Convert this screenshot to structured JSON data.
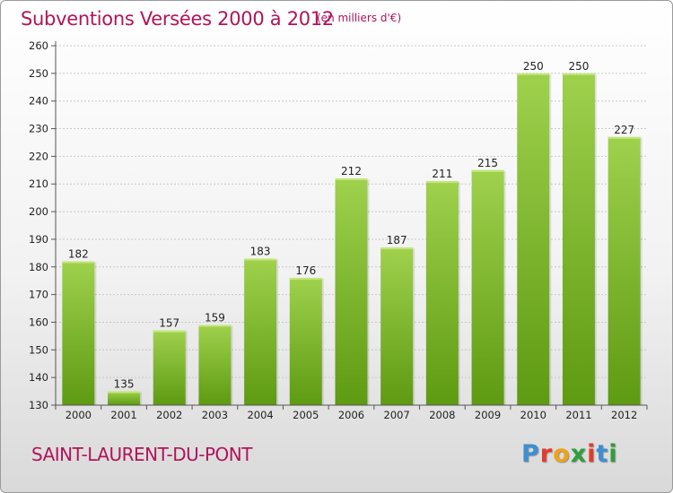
{
  "header": {
    "title": "Subventions Versées 2000 à 2012",
    "unit": "(en milliers d'€)"
  },
  "footer": {
    "commune": "SAINT-LAURENT-DU-PONT",
    "logo_letters": [
      "P",
      "r",
      "o",
      "x",
      "i",
      "t",
      "i"
    ],
    "logo_colors": [
      "#3d8fd1",
      "#e23b2e",
      "#f0a21b",
      "#2f9e3c",
      "#e23b2e",
      "#3d8fd1",
      "#2f9e3c"
    ]
  },
  "colors": {
    "bar_top": "#9fd14d",
    "bar_bottom": "#5e9a12",
    "text_accent": "#b0145a"
  },
  "chart_data": {
    "type": "bar",
    "categories": [
      "2000",
      "2001",
      "2002",
      "2003",
      "2004",
      "2005",
      "2006",
      "2007",
      "2008",
      "2009",
      "2010",
      "2011",
      "2012"
    ],
    "values": [
      182,
      135,
      157,
      159,
      183,
      176,
      212,
      187,
      211,
      215,
      250,
      250,
      227
    ],
    "ylim": [
      130,
      260
    ],
    "yticks": [
      130,
      140,
      150,
      160,
      170,
      180,
      190,
      200,
      210,
      220,
      230,
      240,
      250,
      260
    ],
    "grid": true,
    "data_labels": true
  }
}
